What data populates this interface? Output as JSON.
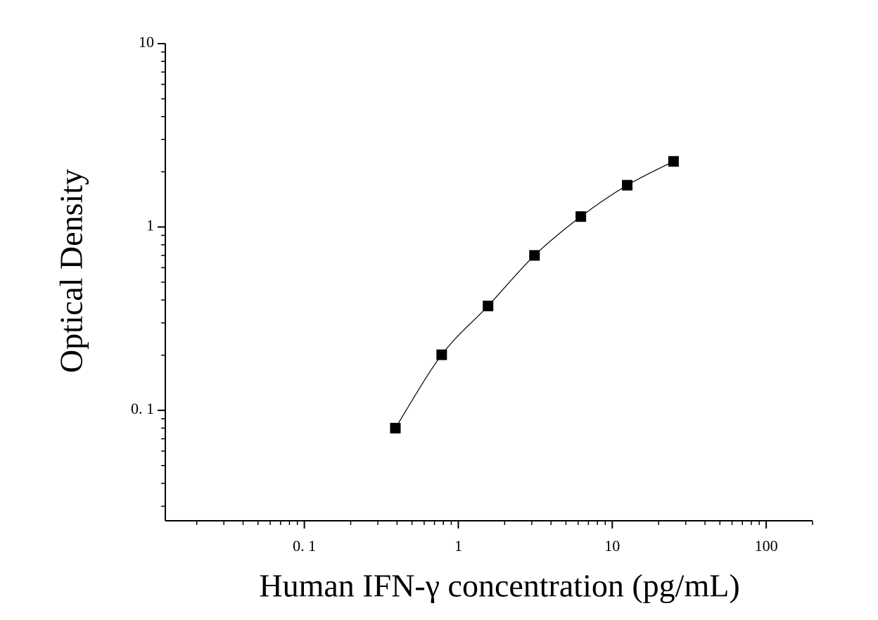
{
  "chart_data": {
    "type": "scatter",
    "x_label": "Human IFN-γ concentration (pg/mL)",
    "y_label": "Optical Density",
    "x_scale": "log",
    "y_scale": "log",
    "fit_line": true,
    "series": [
      {
        "color": "#000000",
        "x": [
          0.39,
          0.78,
          1.56,
          3.125,
          6.25,
          12.5,
          25
        ],
        "values": [
          0.08,
          0.201,
          0.371,
          0.7,
          1.14,
          1.69,
          2.28
        ]
      }
    ],
    "xlim": [
      0.0125,
      200
    ],
    "ylim": [
      0.025,
      10
    ],
    "xticks": [
      {
        "value": 0.1,
        "label": "0. 1"
      },
      1,
      10,
      100
    ],
    "yticks": [
      {
        "value": 0.1,
        "label": "0. 1"
      },
      1,
      10
    ],
    "xminorticks": [
      0.02,
      0.03,
      0.04,
      0.05,
      0.06,
      0.07,
      0.08,
      0.09,
      0.2,
      0.3,
      0.4,
      0.5,
      0.6,
      0.7,
      0.8,
      0.9,
      2,
      3,
      4,
      5,
      6,
      7,
      8,
      9,
      20,
      30,
      40,
      50,
      60,
      70,
      80,
      90,
      200
    ],
    "yminorticks": [
      0.03,
      0.04,
      0.05,
      0.06,
      0.07,
      0.08,
      0.09,
      0.2,
      0.3,
      0.4,
      0.5,
      0.6,
      0.7,
      0.8,
      0.9,
      2,
      3,
      4,
      5,
      6,
      7,
      8,
      9
    ]
  }
}
